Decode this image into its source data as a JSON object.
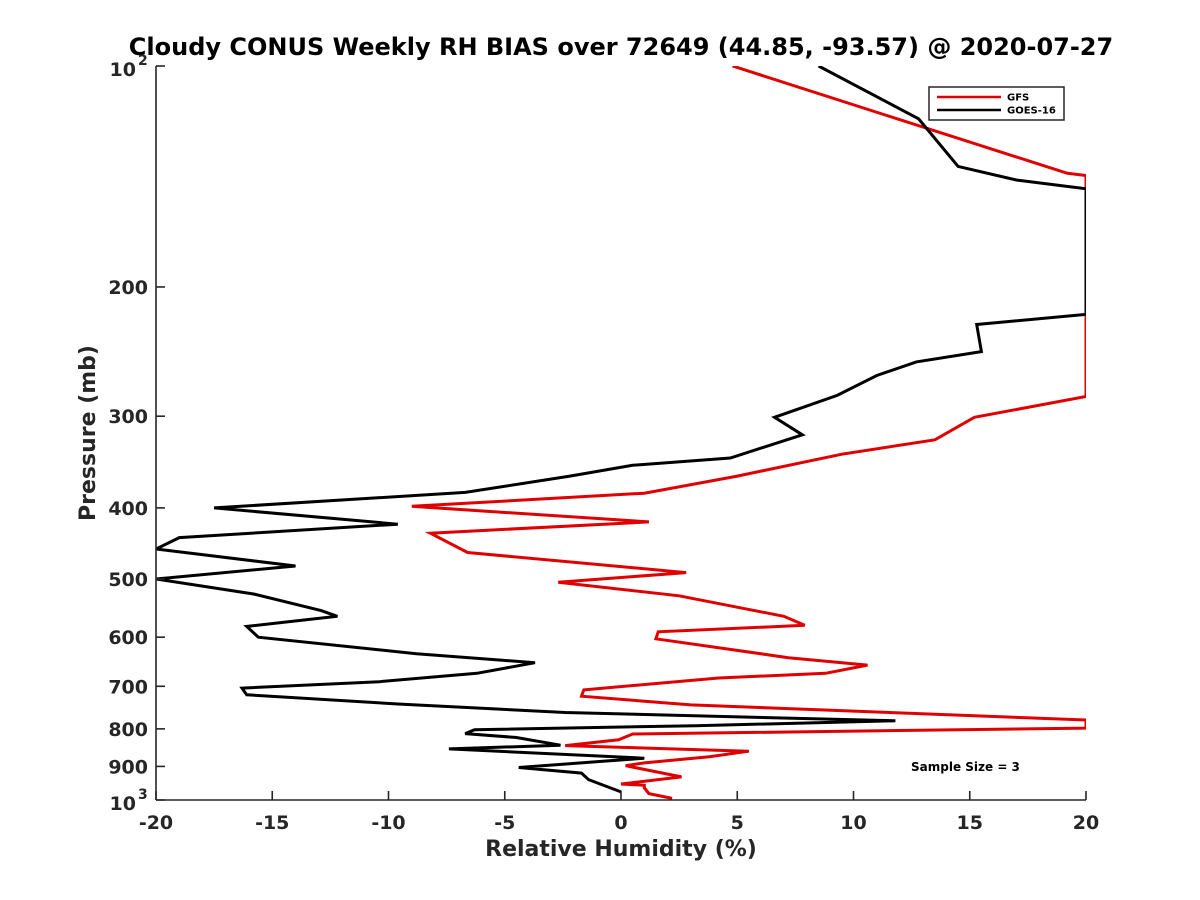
{
  "chart_data": {
    "type": "line",
    "title": "Cloudy CONUS Weekly RH BIAS over 72649 (44.85, -93.57) @ 2020-07-27",
    "xlabel": "Relative Humidity (%)",
    "ylabel": "Pressure (mb)",
    "xlim": [
      -20,
      20
    ],
    "ylim": [
      100,
      1000
    ],
    "y_scale": "log",
    "y_reversed": true,
    "x_ticks": [
      "-20",
      "-15",
      "-10",
      "-5",
      "0",
      "5",
      "10",
      "15",
      "20"
    ],
    "y_ticks": [
      {
        "value": 100,
        "base": "10",
        "exp": "2"
      },
      {
        "value": 200,
        "label": "200"
      },
      {
        "value": 300,
        "label": "300"
      },
      {
        "value": 400,
        "label": "400"
      },
      {
        "value": 500,
        "label": "500"
      },
      {
        "value": 600,
        "label": "600"
      },
      {
        "value": 700,
        "label": "700"
      },
      {
        "value": 800,
        "label": "800"
      },
      {
        "value": 900,
        "label": "900"
      },
      {
        "value": 1000,
        "base": "10",
        "exp": "3"
      }
    ],
    "grid": false,
    "legend_position": "top-right",
    "annotation": "Sample Size = 3",
    "series": [
      {
        "name": "GFS",
        "color": "#e00000",
        "points": [
          [
            4.8,
            100
          ],
          [
            11.5,
            117
          ],
          [
            19.2,
            140
          ],
          [
            20.0,
            141
          ],
          [
            20.0,
            282
          ],
          [
            15.2,
            301
          ],
          [
            13.5,
            323
          ],
          [
            9.5,
            338
          ],
          [
            5.0,
            362
          ],
          [
            1.0,
            382
          ],
          [
            -9.0,
            398
          ],
          [
            1.2,
            418
          ],
          [
            -8.2,
            433
          ],
          [
            -6.6,
            460
          ],
          [
            2.8,
            490
          ],
          [
            -2.7,
            505
          ],
          [
            2.5,
            527
          ],
          [
            7.0,
            562
          ],
          [
            7.9,
            578
          ],
          [
            1.6,
            590
          ],
          [
            1.5,
            603
          ],
          [
            7.2,
            640
          ],
          [
            10.6,
            655
          ],
          [
            8.8,
            672
          ],
          [
            4.2,
            682
          ],
          [
            -1.6,
            708
          ],
          [
            -1.7,
            722
          ],
          [
            3.0,
            742
          ],
          [
            20.0,
            778
          ],
          [
            20.0,
            798
          ],
          [
            0.5,
            813
          ],
          [
            -0.1,
            828
          ],
          [
            -2.4,
            843
          ],
          [
            5.5,
            858
          ],
          [
            3.8,
            873
          ],
          [
            1.0,
            890
          ],
          [
            0.2,
            898
          ],
          [
            2.6,
            930
          ],
          [
            0.0,
            951
          ],
          [
            1.0,
            955
          ],
          [
            1.0,
            962
          ],
          [
            1.2,
            980
          ],
          [
            2.2,
            995
          ]
        ]
      },
      {
        "name": "GOES-16",
        "color": "#000000",
        "points": [
          [
            8.5,
            100
          ],
          [
            12.8,
            118
          ],
          [
            14.5,
            137
          ],
          [
            17.0,
            143
          ],
          [
            20.0,
            147
          ],
          [
            20.0,
            218
          ],
          [
            15.3,
            225
          ],
          [
            15.5,
            245
          ],
          [
            12.7,
            253
          ],
          [
            11.0,
            264
          ],
          [
            9.3,
            281
          ],
          [
            6.6,
            301
          ],
          [
            7.8,
            318
          ],
          [
            4.7,
            342
          ],
          [
            0.5,
            350
          ],
          [
            -2.2,
            362
          ],
          [
            -6.7,
            381
          ],
          [
            -17.5,
            400
          ],
          [
            -9.6,
            421
          ],
          [
            -19.0,
            439
          ],
          [
            -20.0,
            455
          ],
          [
            -14.0,
            480
          ],
          [
            -20.0,
            500
          ],
          [
            -15.8,
            524
          ],
          [
            -12.9,
            552
          ],
          [
            -12.2,
            562
          ],
          [
            -16.1,
            580
          ],
          [
            -15.6,
            600
          ],
          [
            -8.8,
            632
          ],
          [
            -3.7,
            650
          ],
          [
            -6.2,
            672
          ],
          [
            -10.4,
            690
          ],
          [
            -16.3,
            704
          ],
          [
            -16.1,
            719
          ],
          [
            -9.6,
            740
          ],
          [
            -2.4,
            760
          ],
          [
            11.8,
            780
          ],
          [
            3.2,
            792
          ],
          [
            -6.3,
            802
          ],
          [
            -6.7,
            812
          ],
          [
            -4.5,
            822
          ],
          [
            -2.6,
            842
          ],
          [
            -7.4,
            852
          ],
          [
            1.0,
            877
          ],
          [
            -4.4,
            903
          ],
          [
            -1.7,
            919
          ],
          [
            -1.4,
            938
          ],
          [
            0.0,
            975
          ]
        ]
      }
    ]
  }
}
